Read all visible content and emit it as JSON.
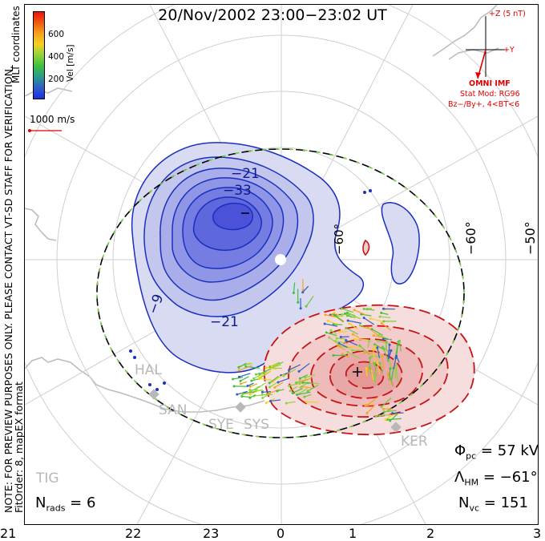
{
  "title": "20/Nov/2002 23:00−23:02 UT",
  "note_line1": "NOTE: FOR PREVIEW PURPOSES ONLY. PLEASE CONTACT VT-SD STAFF FOR VERIFICATION.",
  "note_line2": "FitOrder: 8, mapEX format",
  "coordinates_label": "MLT coordinates",
  "colorbar": {
    "label": "Vel [m/s]",
    "ticks": [
      "600",
      "400",
      "200"
    ],
    "colors": [
      "#ee1010",
      "#f05a10",
      "#f7a41d",
      "#f5d020",
      "#8cd43a",
      "#3fbf3f",
      "#2a9a8c",
      "#2f5fc8",
      "#1a2fe6"
    ]
  },
  "scale_vector": "1000 m/s",
  "imf": {
    "label_z": "+Z (5 nT)",
    "label_y": "+Y",
    "source": "OMNI IMF",
    "model_line1": "Stat Mod: RG96",
    "model_line2": "Bz−/By+, 4<BT<6"
  },
  "latitude_labels": [
    "−60°",
    "−50°",
    "−60°"
  ],
  "contour_labels": [
    "−21",
    "−33",
    "−9",
    "−21"
  ],
  "mlt_labels": [
    "21",
    "22",
    "23",
    "0",
    "1",
    "2",
    "3"
  ],
  "stations": [
    "HAL",
    "SAN",
    "SYE",
    "SYS",
    "KER",
    "TIG"
  ],
  "stats": {
    "phi_pc": "57 kV",
    "lambda_hm": "−61°",
    "n_vc": "151",
    "n_rads": "6"
  }
}
